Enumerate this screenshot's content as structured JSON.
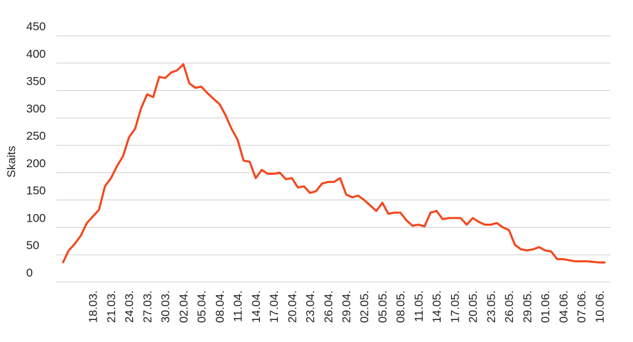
{
  "chart_data": {
    "type": "line",
    "y_label": "Skaits",
    "categories": [
      null,
      null,
      null,
      null,
      null,
      "18.03.",
      null,
      null,
      "21.03.",
      null,
      null,
      "24.03.",
      null,
      null,
      "27.03.",
      null,
      null,
      "30.03.",
      null,
      null,
      "02.04.",
      null,
      null,
      "05.04.",
      null,
      null,
      "08.04.",
      null,
      null,
      "11.04.",
      null,
      null,
      "14.04.",
      null,
      null,
      "17.04.",
      null,
      null,
      "20.04.",
      null,
      null,
      "23.04.",
      null,
      null,
      "26.04.",
      null,
      null,
      "29.04.",
      null,
      null,
      "02.05.",
      null,
      null,
      "05.05.",
      null,
      null,
      "08.05.",
      null,
      null,
      "11.05.",
      null,
      null,
      "14.05.",
      null,
      null,
      "17.05.",
      null,
      null,
      "20.05.",
      null,
      null,
      "23.05.",
      null,
      null,
      "26.05.",
      null,
      null,
      "29.05.",
      null,
      null,
      "01.06.",
      null,
      null,
      "04.06.",
      null,
      null,
      "07.06.",
      null,
      null,
      "10.06.",
      null
    ],
    "series": [
      {
        "name": "Skaits",
        "color": "#f4461c",
        "values": [
          35,
          58,
          70,
          85,
          108,
          120,
          132,
          175,
          190,
          212,
          230,
          265,
          280,
          318,
          343,
          338,
          375,
          373,
          383,
          387,
          398,
          363,
          355,
          357,
          345,
          335,
          325,
          305,
          280,
          260,
          222,
          220,
          190,
          205,
          198,
          198,
          200,
          188,
          190,
          173,
          175,
          163,
          166,
          180,
          183,
          183,
          190,
          160,
          155,
          158,
          150,
          140,
          130,
          145,
          125,
          127,
          127,
          113,
          103,
          105,
          102,
          127,
          130,
          115,
          117,
          117,
          117,
          105,
          117,
          110,
          105,
          105,
          108,
          100,
          95,
          68,
          60,
          58,
          60,
          64,
          58,
          56,
          42,
          42,
          40,
          38,
          38,
          38,
          37,
          36,
          36
        ]
      }
    ],
    "ylim": [
      0,
      450
    ],
    "yticks": [
      0,
      50,
      100,
      150,
      200,
      250,
      300,
      350,
      400,
      450
    ],
    "grid": true
  }
}
